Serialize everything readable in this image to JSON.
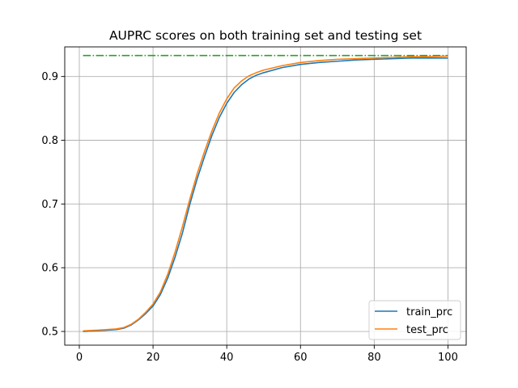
{
  "chart_data": {
    "type": "line",
    "title": "AUPRC scores on both training set and testing set",
    "xlabel": "",
    "ylabel": "",
    "xlim": [
      -3.95,
      104.95
    ],
    "ylim": [
      0.4785,
      0.9465
    ],
    "x_ticks": [
      0,
      20,
      40,
      60,
      80,
      100
    ],
    "y_ticks": [
      0.5,
      0.6,
      0.7,
      0.8,
      0.9
    ],
    "y_tick_labels": [
      "0.5",
      "0.6",
      "0.7",
      "0.8",
      "0.9"
    ],
    "x_tick_labels": [
      "0",
      "20",
      "40",
      "60",
      "80",
      "100"
    ],
    "grid": true,
    "legend_position": "lower-right",
    "series": [
      {
        "name": "train_prc",
        "color": "#1f77b4",
        "style": "solid",
        "x": [
          1,
          5,
          10,
          12,
          14,
          16,
          18,
          20,
          22,
          24,
          26,
          28,
          30,
          32,
          34,
          36,
          38,
          40,
          42,
          44,
          46,
          48,
          50,
          55,
          60,
          65,
          70,
          75,
          80,
          85,
          90,
          95,
          100
        ],
        "y": [
          0.5,
          0.501,
          0.503,
          0.505,
          0.51,
          0.518,
          0.528,
          0.54,
          0.558,
          0.584,
          0.617,
          0.655,
          0.7,
          0.74,
          0.775,
          0.808,
          0.836,
          0.858,
          0.875,
          0.887,
          0.896,
          0.902,
          0.906,
          0.914,
          0.919,
          0.922,
          0.924,
          0.926,
          0.927,
          0.928,
          0.929,
          0.929,
          0.929
        ]
      },
      {
        "name": "test_prc",
        "color": "#ff7f0e",
        "style": "solid",
        "x": [
          1,
          5,
          10,
          12,
          14,
          16,
          18,
          20,
          22,
          24,
          26,
          28,
          30,
          32,
          34,
          36,
          38,
          40,
          42,
          44,
          46,
          48,
          50,
          55,
          60,
          65,
          70,
          75,
          80,
          85,
          90,
          95,
          100
        ],
        "y": [
          0.501,
          0.502,
          0.504,
          0.506,
          0.511,
          0.519,
          0.53,
          0.543,
          0.562,
          0.59,
          0.625,
          0.665,
          0.708,
          0.748,
          0.783,
          0.815,
          0.843,
          0.865,
          0.882,
          0.893,
          0.901,
          0.906,
          0.91,
          0.917,
          0.922,
          0.925,
          0.927,
          0.928,
          0.929,
          0.93,
          0.931,
          0.931,
          0.932
        ]
      },
      {
        "name": "",
        "color": "#2ca02c",
        "style": "dashdot",
        "x": [
          1,
          100
        ],
        "y": [
          0.933,
          0.933
        ]
      }
    ]
  }
}
